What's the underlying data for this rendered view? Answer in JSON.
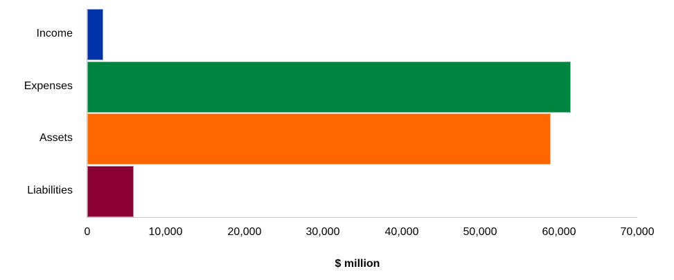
{
  "chart_data": {
    "type": "bar",
    "orientation": "horizontal",
    "title": "",
    "xlabel": "$ million",
    "ylabel": "",
    "categories": [
      "Income",
      "Expenses",
      "Assets",
      "Liabilities"
    ],
    "values": [
      2000,
      61500,
      59000,
      5900
    ],
    "colors": [
      "#0033aa",
      "#008540",
      "#ff6600",
      "#8a0032"
    ],
    "xlim": [
      0,
      70000
    ],
    "xticks": [
      0,
      10000,
      20000,
      30000,
      40000,
      50000,
      60000,
      70000
    ],
    "xtick_labels": [
      "0",
      "10,000",
      "20,000",
      "30,000",
      "40,000",
      "50,000",
      "60,000",
      "70,000"
    ],
    "grid": false,
    "legend": null
  },
  "labels": {
    "categories": [
      "Income",
      "Expenses",
      "Assets",
      "Liabilities"
    ],
    "xticks": [
      "0",
      "10,000",
      "20,000",
      "30,000",
      "40,000",
      "50,000",
      "60,000",
      "70,000"
    ],
    "xlabel": "$ million"
  }
}
